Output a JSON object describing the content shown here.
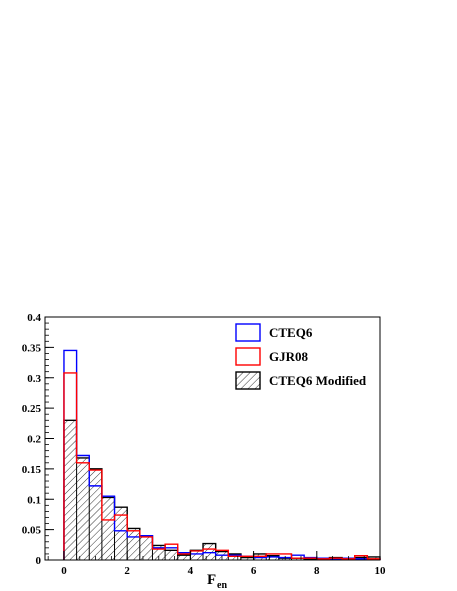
{
  "chart_data": {
    "type": "histogram",
    "xlabel": "F",
    "xlabel_subscript": "en",
    "ylabel": "",
    "xlim": [
      -0.6,
      10
    ],
    "ylim": [
      0,
      0.4
    ],
    "x_ticks": [
      0,
      2,
      4,
      6,
      8,
      10
    ],
    "y_ticks": [
      0,
      0.05,
      0.1,
      0.15,
      0.2,
      0.25,
      0.3,
      0.35,
      0.4
    ],
    "y_tick_labels": [
      "0",
      "0.05",
      "0.1",
      "0.15",
      "0.2",
      "0.25",
      "0.3",
      "0.35",
      "0.4"
    ],
    "bin_edges": [
      0,
      0.4,
      0.8,
      1.2,
      1.6,
      2.0,
      2.4,
      2.8,
      3.2,
      3.6,
      4.0,
      4.4,
      4.8,
      5.2,
      5.6,
      6.0,
      6.4,
      6.8,
      7.2,
      7.6,
      8.0,
      8.4,
      8.8,
      9.2,
      9.6,
      10.0
    ],
    "legend_position": "top-right",
    "grid": false,
    "series": [
      {
        "name": "CTEQ6",
        "color": "#0000ff",
        "style": "line",
        "values": [
          0.345,
          0.172,
          0.122,
          0.105,
          0.048,
          0.038,
          0.04,
          0.02,
          0.02,
          0.012,
          0.01,
          0.012,
          0.008,
          0.008,
          0.006,
          0.004,
          0.005,
          0.004,
          0.008,
          0.004,
          0.003,
          0.002,
          0.003,
          0.002,
          0.001
        ]
      },
      {
        "name": "GJR08",
        "color": "#ff0000",
        "style": "line",
        "values": [
          0.308,
          0.16,
          0.148,
          0.066,
          0.074,
          0.048,
          0.038,
          0.018,
          0.026,
          0.01,
          0.015,
          0.018,
          0.016,
          0.006,
          0.006,
          0.006,
          0.01,
          0.01,
          0.003,
          0.003,
          0.002,
          0.003,
          0.002,
          0.007,
          0.002
        ]
      },
      {
        "name": "CTEQ6 Modified",
        "color": "#000000",
        "style": "hatched",
        "values": [
          0.23,
          0.168,
          0.15,
          0.103,
          0.087,
          0.052,
          0.04,
          0.024,
          0.016,
          0.008,
          0.016,
          0.027,
          0.014,
          0.01,
          0.004,
          0.01,
          0.007,
          0.003,
          0.003,
          0.002,
          0.003,
          0.004,
          0.002,
          0.004,
          0.005
        ]
      }
    ]
  }
}
